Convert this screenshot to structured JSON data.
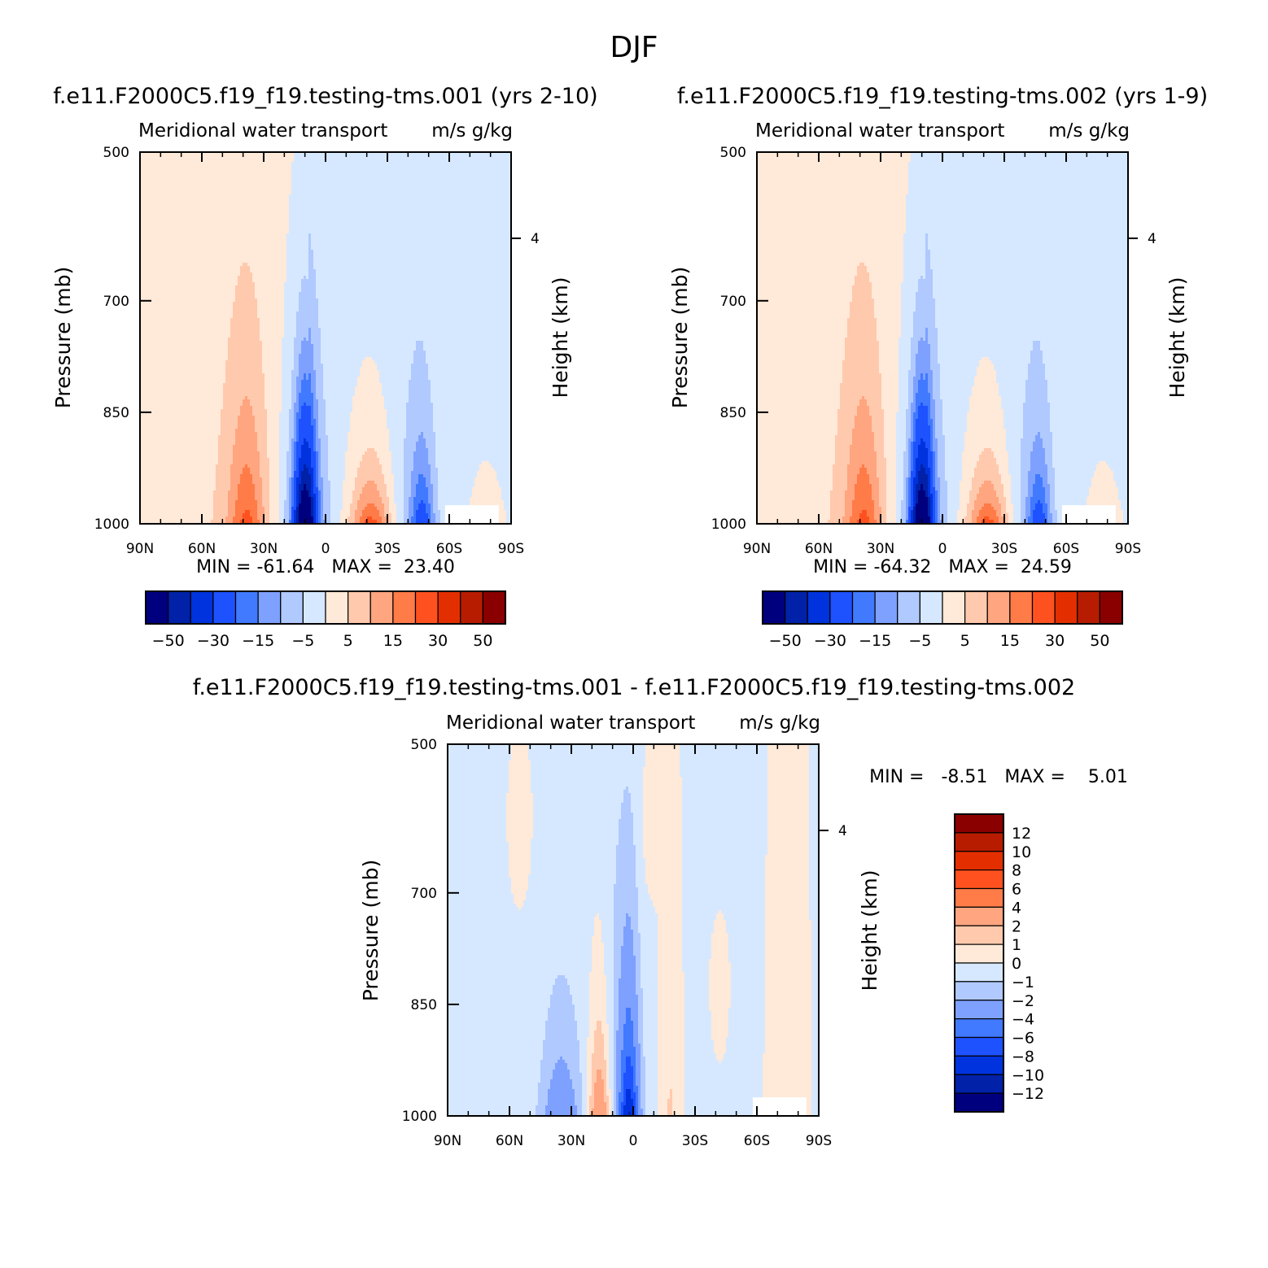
{
  "title": "DJF",
  "colors": {
    "abs_fill": [
      "#00007f",
      "#0021a8",
      "#0033dd",
      "#1e52ff",
      "#4179ff",
      "#7ea1ff",
      "#b0c9ff",
      "#d6e8ff",
      "#ffe9d8",
      "#ffc9ad",
      "#ffa57f",
      "#ff7b48",
      "#ff511f",
      "#e32f00",
      "#b81c00",
      "#8a0000"
    ],
    "diff_fill": [
      "#00007f",
      "#0021a8",
      "#0033dd",
      "#1e52ff",
      "#4179ff",
      "#7ea1ff",
      "#b0c9ff",
      "#d6e8ff",
      "#ffe9d8",
      "#ffc9ad",
      "#ffa57f",
      "#ff7b48",
      "#ff511f",
      "#e32f00",
      "#b81c00",
      "#8a0000"
    ]
  },
  "chart_data": [
    {
      "type": "heatmap",
      "panel": "top-left",
      "case_title": "f.e11.F2000C5.f19_f19.testing-tms.001 (yrs 2-10)",
      "left_label": "Meridional water transport",
      "right_label": "m/s g/kg",
      "ylabel": "Pressure (mb)",
      "ylabel_right": "Height (km)",
      "xticks": [
        "90N",
        "60N",
        "30N",
        "0",
        "30S",
        "60S",
        "90S"
      ],
      "yticks": [
        "500",
        "700",
        "850",
        "1000"
      ],
      "right_ticks": [
        "4"
      ],
      "ylim": [
        1000,
        500
      ],
      "xlim": [
        90,
        -90
      ],
      "min_max": "MIN = -61.64   MAX =  23.40",
      "colorbar_labels": [
        "-50",
        "-30",
        "-15",
        "-5",
        "5",
        "15",
        "30",
        "50"
      ],
      "contour_levels": [
        -50,
        -40,
        -30,
        -20,
        -15,
        -10,
        -5,
        0,
        5,
        10,
        15,
        20,
        30,
        40,
        50
      ],
      "features": [
        {
          "name": "northern positive cell",
          "lat": 38,
          "peak_value": 15
        },
        {
          "name": "equatorial negative cell",
          "lat": 10,
          "peak_value": -61.64
        },
        {
          "name": "southern positive cell",
          "lat": -22,
          "peak_value": 23.4
        },
        {
          "name": "southern negative cell",
          "lat": -47,
          "peak_value": -20
        }
      ]
    },
    {
      "type": "heatmap",
      "panel": "top-right",
      "case_title": "f.e11.F2000C5.f19_f19.testing-tms.002 (yrs 1-9)",
      "left_label": "Meridional water transport",
      "right_label": "m/s g/kg",
      "ylabel": "Pressure (mb)",
      "ylabel_right": "Height (km)",
      "xticks": [
        "90N",
        "60N",
        "30N",
        "0",
        "30S",
        "60S",
        "90S"
      ],
      "yticks": [
        "500",
        "700",
        "850",
        "1000"
      ],
      "right_ticks": [
        "4"
      ],
      "ylim": [
        1000,
        500
      ],
      "xlim": [
        90,
        -90
      ],
      "min_max": "MIN = -64.32   MAX =  24.59",
      "colorbar_labels": [
        "-50",
        "-30",
        "-15",
        "-5",
        "5",
        "15",
        "30",
        "50"
      ],
      "contour_levels": [
        -50,
        -40,
        -30,
        -20,
        -15,
        -10,
        -5,
        0,
        5,
        10,
        15,
        20,
        30,
        40,
        50
      ],
      "features": [
        {
          "name": "northern positive cell",
          "lat": 38,
          "peak_value": 15
        },
        {
          "name": "equatorial negative cell",
          "lat": 10,
          "peak_value": -64.32
        },
        {
          "name": "southern positive cell",
          "lat": -22,
          "peak_value": 24.59
        },
        {
          "name": "southern negative cell",
          "lat": -47,
          "peak_value": -20
        }
      ]
    },
    {
      "type": "heatmap",
      "panel": "bottom",
      "case_title": "f.e11.F2000C5.f19_f19.testing-tms.001 - f.e11.F2000C5.f19_f19.testing-tms.002",
      "left_label": "Meridional water transport",
      "right_label": "m/s g/kg",
      "ylabel": "Pressure (mb)",
      "ylabel_right": "Height (km)",
      "xticks": [
        "90N",
        "60N",
        "30N",
        "0",
        "30S",
        "60S",
        "90S"
      ],
      "yticks": [
        "500",
        "700",
        "850",
        "1000"
      ],
      "right_ticks": [
        "4"
      ],
      "ylim": [
        1000,
        500
      ],
      "xlim": [
        90,
        -90
      ],
      "min_max": "MIN =   -8.51   MAX =    5.01",
      "colorbar_labels": [
        "12",
        "10",
        "8",
        "6",
        "4",
        "2",
        "1",
        "0",
        "-1",
        "-2",
        "-4",
        "-6",
        "-8",
        "-10",
        "-12"
      ],
      "contour_levels": [
        -12,
        -10,
        -8,
        -6,
        -4,
        -2,
        -1,
        0,
        1,
        2,
        4,
        6,
        8,
        10,
        12
      ],
      "features": [
        {
          "name": "positive anomaly",
          "lat": 16,
          "peak_value": 5.01
        },
        {
          "name": "negative anomaly",
          "lat": 2,
          "peak_value": -8.51
        },
        {
          "name": "negative anomaly",
          "lat": 35,
          "peak_value": -3
        }
      ]
    }
  ]
}
